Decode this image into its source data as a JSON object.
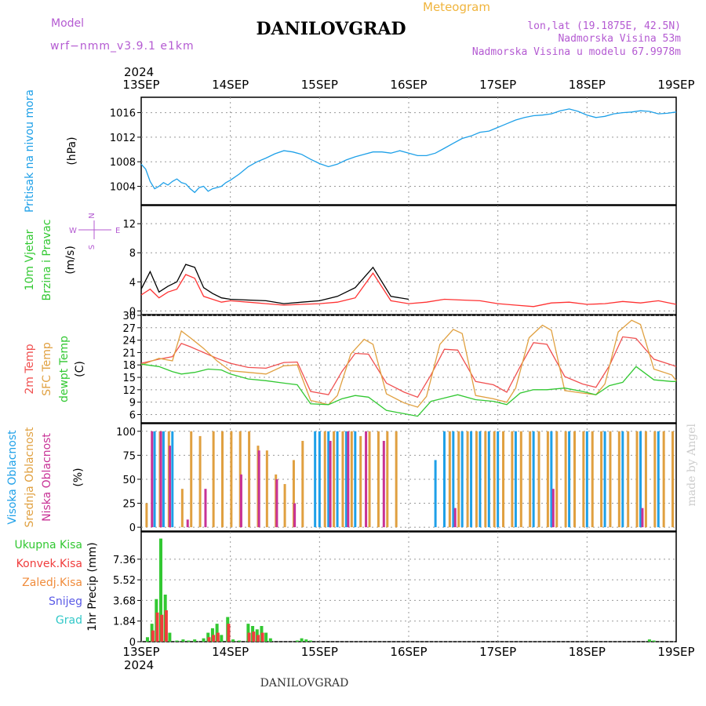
{
  "header": {
    "model_label": "Model",
    "model_name": "wrf−nmm_v3.9.1 e1km",
    "station": "DANILOVGRAD",
    "chart_kind": "Meteogram",
    "lonlat": "lon,lat (19.1875E, 42.5N)",
    "elevation": "Nadmorska Visina 53m",
    "model_elevation": "Nadmorska Visina u modelu 67.9978m",
    "year": "2024",
    "footer_station": "DANILOVGRAD",
    "watermark": "made by Angel"
  },
  "colors": {
    "pressure": "#1ea0e8",
    "wind_speed": "#ff3232",
    "wind_gust": "#000000",
    "t2m": "#f05050",
    "tsfc": "#e0a040",
    "dewpoint": "#32c832",
    "cloud_high": "#1ea0e8",
    "cloud_mid": "#e0a040",
    "cloud_low": "#c83296",
    "precip_total": "#32c832",
    "precip_conv": "#f03c3c",
    "precip_frozen": "#f08c3c",
    "precip_snow": "#5a5ae6",
    "precip_hail": "#32c8c8",
    "header_purple": "#b45ad2",
    "header_orange": "#f0b43c",
    "grid": "#999999"
  },
  "chart_data": {
    "type": "meteogram",
    "x_dates": [
      "13SEP",
      "14SEP",
      "15SEP",
      "16SEP",
      "17SEP",
      "18SEP",
      "19SEP"
    ],
    "panels": [
      {
        "id": "pressure",
        "type": "line",
        "ylabel": [
          "Pritisak na nivou mora",
          "(hPa)"
        ],
        "yticks": [
          1004,
          1008,
          1012,
          1016
        ],
        "ylim": [
          1001,
          1018.5
        ],
        "series": [
          {
            "name": "Pritisak na nivou mora",
            "color_key": "pressure",
            "x": [
              0,
              0.05,
              0.1,
              0.15,
              0.2,
              0.25,
              0.3,
              0.35,
              0.4,
              0.45,
              0.5,
              0.55,
              0.6,
              0.65,
              0.7,
              0.75,
              0.8,
              0.85,
              0.9,
              0.95,
              1.0,
              1.1,
              1.2,
              1.3,
              1.4,
              1.5,
              1.6,
              1.7,
              1.8,
              1.9,
              2.0,
              2.1,
              2.2,
              2.3,
              2.4,
              2.5,
              2.6,
              2.7,
              2.8,
              2.9,
              3.0,
              3.1,
              3.2,
              3.3,
              3.4,
              3.5,
              3.6,
              3.7,
              3.8,
              3.9,
              4.0,
              4.1,
              4.2,
              4.3,
              4.4,
              4.5,
              4.6,
              4.7,
              4.8,
              4.9,
              5.0,
              5.1,
              5.2,
              5.3,
              5.4,
              5.5,
              5.6,
              5.7,
              5.8,
              5.9,
              6.0
            ],
            "values": [
              1007.6,
              1006.8,
              1004.8,
              1003.6,
              1004.0,
              1004.6,
              1004.2,
              1004.8,
              1005.2,
              1004.6,
              1004.4,
              1003.6,
              1003.0,
              1003.8,
              1004.0,
              1003.2,
              1003.6,
              1003.8,
              1004.0,
              1004.6,
              1005.0,
              1006.0,
              1007.2,
              1008.0,
              1008.6,
              1009.3,
              1009.8,
              1009.6,
              1009.2,
              1008.4,
              1007.7,
              1007.2,
              1007.6,
              1008.3,
              1008.8,
              1009.2,
              1009.6,
              1009.6,
              1009.4,
              1009.8,
              1009.4,
              1009.0,
              1009.0,
              1009.4,
              1010.2,
              1011.0,
              1011.8,
              1012.2,
              1012.8,
              1013.0,
              1013.6,
              1014.2,
              1014.8,
              1015.2,
              1015.5,
              1015.6,
              1015.8,
              1016.3,
              1016.6,
              1016.2,
              1015.6,
              1015.2,
              1015.4,
              1015.8,
              1016.0,
              1016.1,
              1016.3,
              1016.2,
              1015.8,
              1015.9,
              1016.1
            ]
          }
        ]
      },
      {
        "id": "wind",
        "type": "line",
        "ylabel": [
          "10m Vjetar",
          "Brzina i Pravac",
          "(m/s)"
        ],
        "compass": {
          "n": "N",
          "s": "S",
          "w": "W",
          "e": "E"
        },
        "yticks": [
          0,
          4,
          8,
          12
        ],
        "ylim": [
          -0.5,
          14.5
        ],
        "series": [
          {
            "name": "wind speed",
            "color_key": "wind_speed",
            "x": [
              0,
              0.1,
              0.2,
              0.3,
              0.4,
              0.5,
              0.6,
              0.7,
              0.8,
              0.9,
              1.0,
              1.2,
              1.4,
              1.6,
              1.8,
              2.0,
              2.2,
              2.4,
              2.6,
              2.8,
              3.0,
              3.2,
              3.4,
              3.6,
              3.8,
              4.0,
              4.2,
              4.4,
              4.6,
              4.8,
              5.0,
              5.2,
              5.4,
              5.6,
              5.8,
              6.0
            ],
            "values": [
              2.2,
              3.0,
              1.8,
              2.6,
              3.0,
              5.0,
              4.5,
              2.0,
              1.6,
              1.2,
              1.4,
              1.2,
              1.0,
              0.8,
              0.9,
              1.0,
              1.2,
              1.8,
              5.2,
              1.4,
              1.0,
              1.2,
              1.6,
              1.5,
              1.4,
              1.0,
              0.8,
              0.6,
              1.1,
              1.2,
              0.9,
              1.0,
              1.3,
              1.1,
              1.4,
              0.9
            ]
          },
          {
            "name": "wind gust",
            "color_key": "wind_gust",
            "x": [
              0,
              0.1,
              0.2,
              0.3,
              0.4,
              0.5,
              0.6,
              0.7,
              0.8,
              0.9,
              1.0,
              1.2,
              1.4,
              1.6,
              1.8,
              2.0,
              2.2,
              2.4,
              2.6,
              2.8,
              3.0
            ],
            "values": [
              3.0,
              5.4,
              2.6,
              3.4,
              4.0,
              6.4,
              6.0,
              3.2,
              2.4,
              1.8,
              1.6,
              1.5,
              1.4,
              1.0,
              1.2,
              1.4,
              2.0,
              3.2,
              6.0,
              2.0,
              1.6
            ]
          }
        ]
      },
      {
        "id": "temperature",
        "type": "line",
        "ylabel": [
          "2m Temp",
          "SFC Temp",
          "dewpt Temp",
          "(C)"
        ],
        "yticks": [
          6,
          9,
          12,
          15,
          18,
          21,
          24,
          27,
          30
        ],
        "ylim": [
          4,
          30
        ],
        "series": [
          {
            "name": "2m Temp",
            "color_key": "t2m",
            "x": [
              0,
              0.2,
              0.35,
              0.45,
              0.55,
              0.7,
              0.85,
              1.0,
              1.2,
              1.4,
              1.6,
              1.75,
              1.9,
              2.1,
              2.25,
              2.4,
              2.55,
              2.75,
              2.95,
              3.1,
              3.25,
              3.4,
              3.55,
              3.75,
              3.95,
              4.1,
              4.25,
              4.4,
              4.55,
              4.75,
              4.95,
              5.1,
              5.25,
              5.4,
              5.55,
              5.75,
              5.95,
              6.0
            ],
            "values": [
              18.4,
              19.4,
              20.0,
              23.2,
              22.4,
              21.0,
              19.6,
              18.4,
              17.4,
              17.2,
              18.6,
              18.7,
              11.6,
              10.8,
              16.4,
              20.8,
              20.6,
              13.6,
              11.4,
              10.2,
              15.6,
              21.8,
              21.6,
              14.0,
              13.2,
              11.4,
              17.6,
              23.4,
              23.0,
              15.2,
              13.4,
              12.6,
              17.8,
              24.8,
              24.4,
              19.4,
              18.0,
              17.6
            ]
          },
          {
            "name": "SFC Temp",
            "color_key": "tsfc",
            "x": [
              0,
              0.2,
              0.35,
              0.45,
              0.55,
              0.7,
              0.85,
              1.0,
              1.2,
              1.4,
              1.6,
              1.75,
              1.9,
              2.1,
              2.2,
              2.35,
              2.5,
              2.6,
              2.75,
              2.95,
              3.1,
              3.2,
              3.35,
              3.5,
              3.6,
              3.75,
              3.95,
              4.1,
              4.2,
              4.35,
              4.5,
              4.6,
              4.75,
              4.95,
              5.1,
              5.2,
              5.35,
              5.5,
              5.6,
              5.75,
              5.95,
              6.0
            ],
            "values": [
              18.0,
              19.6,
              19.0,
              26.2,
              24.6,
              22.0,
              19.0,
              16.6,
              16.2,
              15.8,
              17.8,
              18.0,
              9.4,
              8.4,
              10.6,
              20.6,
              24.2,
              23.0,
              11.0,
              8.8,
              7.8,
              10.4,
              23.0,
              26.6,
              25.6,
              10.6,
              9.8,
              9.0,
              12.4,
              24.6,
              27.6,
              26.4,
              11.8,
              11.2,
              10.8,
              13.4,
              26.0,
              28.8,
              27.8,
              17.0,
              15.6,
              14.2
            ]
          },
          {
            "name": "dewpt Temp",
            "color_key": "dewpoint",
            "x": [
              0,
              0.2,
              0.35,
              0.45,
              0.6,
              0.75,
              0.9,
              1.0,
              1.2,
              1.4,
              1.6,
              1.75,
              1.9,
              2.1,
              2.25,
              2.4,
              2.55,
              2.75,
              2.95,
              3.1,
              3.25,
              3.4,
              3.55,
              3.75,
              3.95,
              4.1,
              4.25,
              4.4,
              4.55,
              4.75,
              4.95,
              5.1,
              5.25,
              5.4,
              5.55,
              5.75,
              5.95,
              6.0
            ],
            "values": [
              18.2,
              17.6,
              16.4,
              15.8,
              16.2,
              17.0,
              16.8,
              15.8,
              14.6,
              14.2,
              13.6,
              13.2,
              8.6,
              8.4,
              9.8,
              10.6,
              10.2,
              7.0,
              6.2,
              5.6,
              9.2,
              10.0,
              10.8,
              9.6,
              9.2,
              8.4,
              11.2,
              12.0,
              12.0,
              12.4,
              11.6,
              10.8,
              13.0,
              13.8,
              17.6,
              14.4,
              14.0,
              14.0
            ]
          }
        ]
      },
      {
        "id": "clouds",
        "type": "bar",
        "ylabel": [
          "Visoka Oblacnost",
          "Srednja Oblacnost",
          "Niska Oblacnost",
          "(%)"
        ],
        "yticks": [
          0,
          25,
          50,
          75,
          100
        ],
        "ylim": [
          -4,
          108
        ],
        "series": [
          {
            "name": "Visoka Oblacnost",
            "color_key": "cloud_high",
            "x": [
              0.15,
              0.25,
              0.35,
              1.95,
              2.0,
              2.1,
              2.2,
              2.3,
              2.4,
              3.3,
              3.4,
              3.5,
              3.6,
              3.7,
              3.8,
              3.9,
              4.0,
              4.2,
              4.4,
              4.6,
              4.8,
              5.0,
              5.2,
              5.4,
              5.6,
              5.8
            ],
            "values": [
              100,
              100,
              100,
              100,
              100,
              100,
              100,
              100,
              100,
              70,
              100,
              100,
              100,
              100,
              100,
              100,
              100,
              100,
              100,
              100,
              100,
              100,
              100,
              100,
              100,
              100
            ]
          },
          {
            "name": "Srednja Oblacnost",
            "color_key": "cloud_mid",
            "x": [
              0.05,
              0.2,
              0.3,
              0.45,
              0.55,
              0.65,
              0.8,
              0.9,
              1.0,
              1.1,
              1.2,
              1.3,
              1.4,
              1.5,
              1.6,
              1.7,
              1.8,
              2.05,
              2.15,
              2.25,
              2.35,
              2.45,
              2.55,
              2.65,
              2.75,
              2.85,
              3.45,
              3.55,
              3.65,
              3.75,
              3.85,
              3.95,
              4.05,
              4.15,
              4.25,
              4.35,
              4.45,
              4.55,
              4.65,
              4.75,
              4.85,
              4.95,
              5.05,
              5.15,
              5.25,
              5.35,
              5.45,
              5.55,
              5.65,
              5.75,
              5.85,
              5.95
            ],
            "values": [
              25,
              100,
              100,
              40,
              100,
              95,
              100,
              100,
              100,
              100,
              100,
              85,
              80,
              55,
              45,
              70,
              90,
              100,
              100,
              100,
              100,
              95,
              100,
              100,
              100,
              100,
              100,
              100,
              100,
              100,
              100,
              100,
              100,
              100,
              100,
              100,
              100,
              100,
              100,
              100,
              100,
              100,
              100,
              100,
              100,
              100,
              100,
              100,
              100,
              100,
              100,
              100
            ]
          },
          {
            "name": "Niska Oblacnost",
            "color_key": "cloud_low",
            "x": [
              0.1,
              0.2,
              0.3,
              0.5,
              0.7,
              1.1,
              1.3,
              1.5,
              1.7,
              2.1,
              2.3,
              2.5,
              2.7,
              3.5,
              4.6,
              5.6
            ],
            "values": [
              100,
              100,
              85,
              8,
              40,
              55,
              80,
              50,
              25,
              90,
              100,
              100,
              90,
              20,
              40,
              20
            ]
          }
        ]
      },
      {
        "id": "precip",
        "type": "bar",
        "ylabel": [
          "1hr Precip (mm)"
        ],
        "yticks": [
          0,
          1.84,
          3.68,
          5.52,
          7.36
        ],
        "ylim": [
          0,
          9.8
        ],
        "legend": [
          "Ukupna Kisa",
          "Konvek.Kisa",
          "Zaledj.Kisa",
          "Snijeg",
          "Grad"
        ],
        "series": [
          {
            "name": "Ukupna Kisa",
            "color_key": "precip_total",
            "x": [
              0.07,
              0.12,
              0.17,
              0.22,
              0.27,
              0.32,
              0.4,
              0.47,
              0.53,
              0.6,
              0.7,
              0.75,
              0.8,
              0.85,
              0.9,
              0.97,
              1.03,
              1.1,
              1.2,
              1.25,
              1.3,
              1.35,
              1.4,
              1.45,
              1.75,
              1.8,
              1.85,
              1.9,
              5.7,
              5.75
            ],
            "values": [
              0.4,
              1.6,
              3.8,
              9.2,
              4.2,
              0.8,
              0.1,
              0.2,
              0.1,
              0.2,
              0.3,
              0.8,
              1.2,
              1.6,
              0.6,
              2.2,
              0.2,
              0.1,
              1.6,
              1.4,
              1.1,
              1.4,
              0.8,
              0.3,
              0.1,
              0.3,
              0.2,
              0.1,
              0.2,
              0.1
            ]
          },
          {
            "name": "Konvek.Kisa",
            "color_key": "precip_conv",
            "x": [
              0.12,
              0.17,
              0.22,
              0.27,
              0.75,
              0.8,
              0.85,
              0.97,
              1.2,
              1.25,
              1.3,
              1.35
            ],
            "values": [
              1.0,
              2.6,
              2.4,
              2.8,
              0.4,
              0.6,
              0.8,
              1.6,
              0.8,
              0.9,
              0.6,
              0.8
            ]
          }
        ]
      }
    ]
  }
}
